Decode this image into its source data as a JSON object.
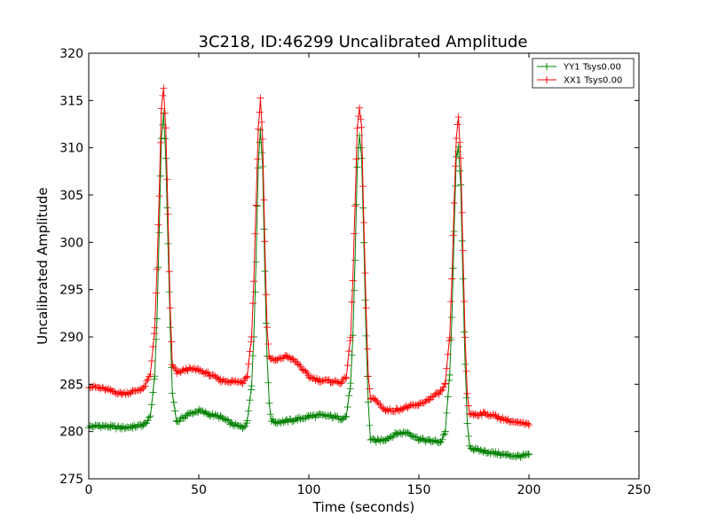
{
  "chart_data": {
    "type": "line",
    "title": "3C218, ID:46299 Uncalibrated Amplitude",
    "xlabel": "Time (seconds)",
    "ylabel": "Uncalibrated Amplitude",
    "xlim": [
      0,
      250
    ],
    "ylim": [
      275,
      320
    ],
    "xticks": [
      0,
      50,
      100,
      150,
      200,
      250
    ],
    "yticks": [
      275,
      280,
      285,
      290,
      295,
      300,
      305,
      310,
      315,
      320
    ],
    "grid": false,
    "legend_position": "top-right",
    "marker": "+",
    "series": [
      {
        "name": "YY1 Tsys0.00",
        "color": "#008000",
        "x": [
          0,
          5,
          10,
          15,
          20,
          25,
          28,
          30,
          31,
          32,
          33,
          34,
          35,
          36,
          37,
          38,
          40,
          45,
          50,
          55,
          60,
          65,
          70,
          72,
          74,
          75,
          76,
          77,
          78,
          79,
          80,
          81,
          82,
          83,
          85,
          90,
          95,
          100,
          105,
          110,
          115,
          117,
          119,
          120,
          121,
          122,
          123,
          124,
          125,
          126,
          127,
          128,
          130,
          135,
          140,
          145,
          150,
          155,
          160,
          162,
          164,
          165,
          166,
          167,
          168,
          169,
          170,
          171,
          172,
          173,
          175,
          180,
          185,
          190,
          195,
          200
        ],
        "y": [
          280.5,
          280.6,
          280.5,
          280.4,
          280.5,
          280.7,
          281.5,
          286,
          292,
          301,
          311,
          313.5,
          309,
          300,
          291,
          284,
          281,
          281.8,
          282.2,
          281.8,
          281.5,
          280.8,
          280.4,
          281,
          285,
          290,
          298,
          308,
          312,
          308,
          297,
          288,
          283,
          281.2,
          281,
          281.1,
          281.3,
          281.6,
          281.7,
          281.6,
          281.4,
          281.6,
          285,
          290,
          298,
          308,
          311.3,
          309,
          300,
          290,
          283,
          279.2,
          279,
          279.2,
          279.8,
          279.9,
          279.2,
          279,
          278.9,
          280,
          286,
          292,
          301,
          309,
          310.2,
          306,
          296,
          287,
          281,
          278.5,
          278.1,
          277.9,
          277.7,
          277.5,
          277.4,
          277.5
        ]
      },
      {
        "name": "XX1 Tsys0.00",
        "color": "#ff0000",
        "x": [
          0,
          5,
          10,
          15,
          20,
          25,
          28,
          30,
          31,
          32,
          33,
          34,
          35,
          36,
          37,
          38,
          40,
          45,
          50,
          55,
          60,
          65,
          70,
          72,
          74,
          75,
          76,
          77,
          78,
          79,
          80,
          81,
          82,
          83,
          85,
          90,
          95,
          100,
          105,
          110,
          115,
          117,
          119,
          120,
          121,
          122,
          123,
          124,
          125,
          126,
          127,
          128,
          130,
          135,
          140,
          145,
          150,
          155,
          160,
          162,
          164,
          165,
          166,
          167,
          168,
          169,
          170,
          171,
          172,
          173,
          175,
          180,
          185,
          190,
          195,
          200
        ],
        "y": [
          284.8,
          284.6,
          284.3,
          284,
          284.2,
          284.6,
          286,
          291,
          297,
          305,
          314,
          316.3,
          312,
          303,
          293,
          287,
          286.2,
          286.6,
          286.5,
          286,
          285.4,
          285.3,
          285.2,
          286,
          290,
          296,
          304,
          312,
          315.2,
          311,
          300,
          291,
          288,
          287.6,
          287.5,
          288,
          287.2,
          285.8,
          285.4,
          285.3,
          285.2,
          285.8,
          290,
          296,
          304,
          312,
          314.2,
          312,
          302,
          293,
          286,
          283.5,
          283.4,
          282.2,
          282.3,
          282.6,
          282.8,
          283.5,
          284.2,
          285,
          290,
          296,
          304,
          311,
          313.2,
          309,
          299,
          290,
          284,
          281.9,
          281.8,
          281.9,
          281.6,
          281.2,
          280.9,
          280.7
        ]
      }
    ]
  }
}
